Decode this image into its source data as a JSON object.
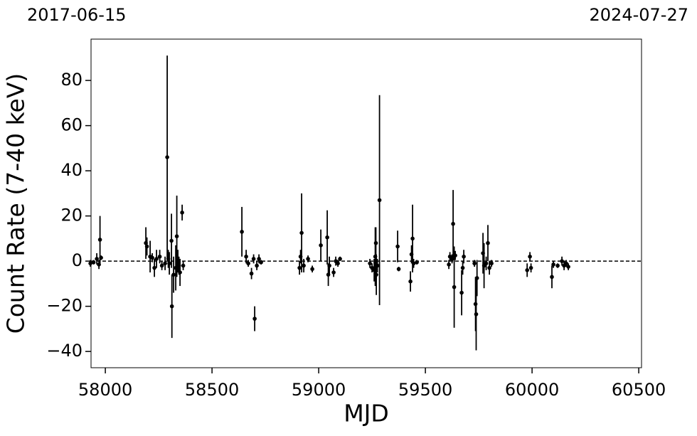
{
  "chart_data": {
    "type": "scatter",
    "annotations": [
      "2017-06-15",
      "2024-07-27"
    ],
    "x_label": "MJD",
    "y_label": "Count Rate (7-40 keV)",
    "xlim": [
      57933,
      60513
    ],
    "ylim": [
      -47.2,
      98.3
    ],
    "xticks": [
      58000,
      58500,
      59000,
      59500,
      60000,
      60500
    ],
    "yticks": [
      {
        "value": -40,
        "label": "−40"
      },
      {
        "value": -20,
        "label": "−20"
      },
      0,
      20,
      40,
      60,
      80
    ],
    "reference_line": 0,
    "series": [
      {
        "color": "#000000",
        "x": [
          57930,
          57945,
          57960,
          57970,
          57975,
          57980,
          58190,
          58195,
          58210,
          58220,
          58230,
          58240,
          58255,
          58265,
          58280,
          58290,
          58295,
          58300,
          58310,
          58312,
          58320,
          58330,
          58335,
          58340,
          58345,
          58350,
          58360,
          58365,
          58640,
          58660,
          58670,
          58685,
          58695,
          58700,
          58710,
          58720,
          58730,
          58910,
          58915,
          58920,
          58930,
          58950,
          58970,
          59010,
          59040,
          59045,
          59050,
          59070,
          59080,
          59090,
          59100,
          59240,
          59250,
          59260,
          59265,
          59268,
          59270,
          59275,
          59285,
          59370,
          59375,
          59430,
          59435,
          59440,
          59445,
          59460,
          59610,
          59615,
          59625,
          59630,
          59635,
          59640,
          59670,
          59675,
          59680,
          59730,
          59735,
          59738,
          59742,
          59770,
          59775,
          59785,
          59793,
          59800,
          59810,
          59977,
          59990,
          59995,
          60093,
          60100,
          60120,
          60140,
          60150,
          60160,
          60170
        ],
        "values": [
          -1,
          -0.5,
          1,
          -1.5,
          9.5,
          1.5,
          8,
          6.5,
          2,
          1.5,
          -3,
          1,
          2,
          -2,
          -1,
          46,
          1,
          -1,
          9,
          -20,
          -6,
          -3,
          11,
          0,
          -2,
          -5,
          21.5,
          -2,
          13,
          2,
          -1,
          -5.5,
          1,
          -25.5,
          -2,
          1,
          -0.5,
          -3,
          2,
          12.5,
          -2,
          1,
          -3.5,
          7,
          10.5,
          -6,
          -2,
          -5,
          0,
          -1,
          1,
          -1,
          -3,
          -4,
          2,
          8,
          -6,
          -2,
          27,
          6.5,
          -3.5,
          -9,
          3,
          10,
          -1,
          -0.5,
          -1.5,
          2,
          1,
          16.5,
          -11.5,
          2.5,
          -14,
          -3,
          2,
          -1,
          -19,
          -23.5,
          -7.5,
          3.5,
          -2,
          -1,
          8,
          -3,
          -1,
          -4,
          2,
          -3,
          -7,
          -1.5,
          -2,
          0,
          -2,
          -1,
          -2.5
        ],
        "errors": [
          1.5,
          1,
          2.5,
          2,
          10.5,
          1,
          7,
          4,
          7,
          2,
          4,
          4,
          3,
          2,
          3,
          45,
          4,
          5,
          12,
          14,
          8,
          10,
          18,
          5,
          4,
          6,
          3.5,
          2,
          11,
          3,
          1.5,
          2.5,
          2,
          5.5,
          2,
          2,
          1,
          3,
          3,
          17.5,
          3,
          1.5,
          1.5,
          7,
          12,
          5,
          4,
          2,
          2,
          1.5,
          1,
          2,
          2,
          5,
          13,
          7,
          9,
          3,
          46.5,
          7,
          1,
          4.5,
          4,
          15,
          2,
          1,
          2,
          2,
          2,
          15,
          18,
          2,
          10,
          3,
          3,
          1.5,
          12,
          16,
          8,
          9,
          10,
          3,
          8,
          3,
          1.5,
          3,
          2,
          2,
          5,
          1.5,
          1,
          2,
          2,
          1.5,
          1.5
        ]
      }
    ]
  }
}
